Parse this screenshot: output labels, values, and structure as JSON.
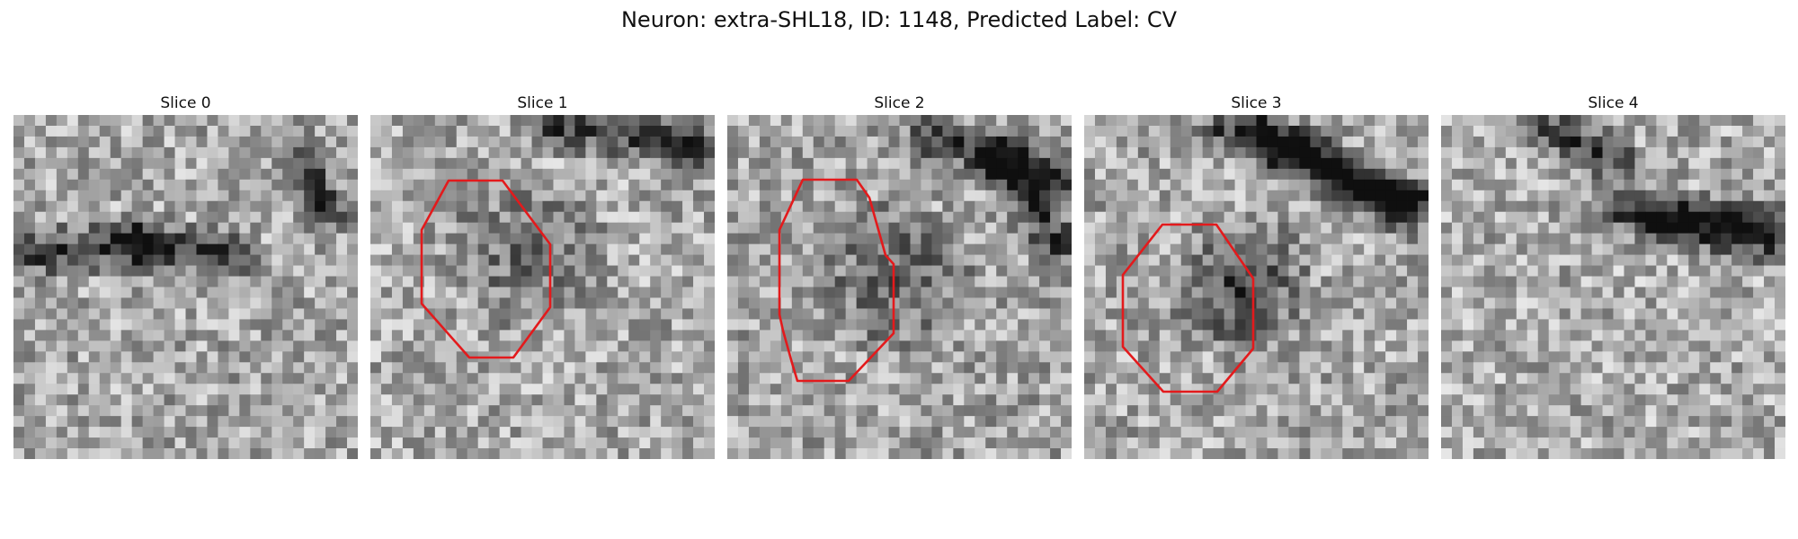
{
  "figure": {
    "title": "Neuron: extra-SHL18, ID: 1148, Predicted Label: CV"
  },
  "panels": [
    {
      "title": "Slice 0",
      "has_outline": false
    },
    {
      "title": "Slice 1",
      "has_outline": true
    },
    {
      "title": "Slice 2",
      "has_outline": true
    },
    {
      "title": "Slice 3",
      "has_outline": true
    },
    {
      "title": "Slice 4",
      "has_outline": false
    }
  ],
  "colors": {
    "outline": "#e31a1c",
    "background": "#ffffff"
  }
}
